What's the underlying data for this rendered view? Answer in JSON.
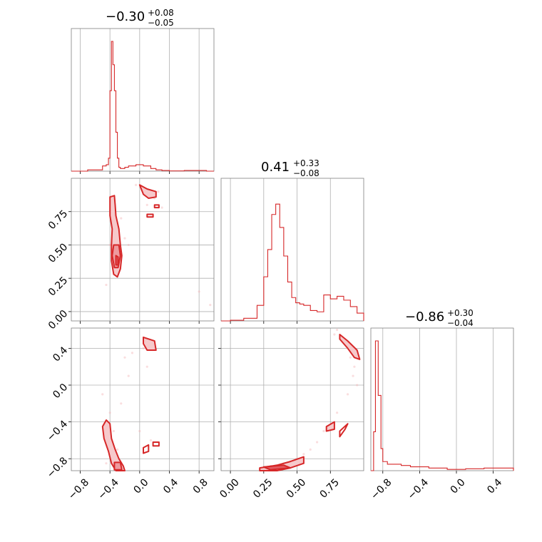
{
  "chart_data": {
    "type": "corner",
    "parameters": [
      {
        "title_main": "−0.30",
        "title_plus": "+0.08",
        "title_minus": "−0.05",
        "range": [
          -0.92,
          1.0
        ]
      },
      {
        "title_main": "0.41",
        "title_plus": "+0.33",
        "title_minus": "−0.08",
        "range": [
          -0.07,
          1.0
        ]
      },
      {
        "title_main": "−0.86",
        "title_plus": "+0.30",
        "title_minus": "−0.04",
        "range": [
          -0.93,
          0.62
        ]
      }
    ],
    "tick_labels": {
      "p0": {
        "values": [
          -0.8,
          -0.4,
          0.0,
          0.4,
          0.8
        ],
        "labels": [
          "−0.8",
          "−0.4",
          "0.0",
          "0.4",
          "0.8"
        ]
      },
      "p1": {
        "values": [
          0.0,
          0.25,
          0.5,
          0.75
        ],
        "labels": [
          "0.00",
          "0.25",
          "0.50",
          "0.75"
        ]
      },
      "p2": {
        "values": [
          -0.8,
          -0.4,
          0.0,
          0.4
        ],
        "labels": [
          "−0.8",
          "−0.4",
          "0.0",
          "0.4"
        ]
      }
    },
    "histograms": [
      {
        "param": 0,
        "bins": [
          -0.92,
          -0.7,
          -0.5,
          -0.45,
          -0.42,
          -0.4,
          -0.38,
          -0.36,
          -0.34,
          -0.32,
          -0.3,
          -0.28,
          -0.26,
          -0.24,
          -0.22,
          -0.2,
          -0.15,
          -0.05,
          0.05,
          0.15,
          0.22,
          0.3,
          0.4,
          0.6,
          0.9,
          1.0
        ],
        "counts": [
          0,
          0.01,
          0.04,
          0.05,
          0.1,
          0.62,
          1.0,
          0.82,
          0.62,
          0.3,
          0.1,
          0.03,
          0.02,
          0.02,
          0.02,
          0.03,
          0.04,
          0.05,
          0.04,
          0.02,
          0.01,
          0.005,
          0.002,
          0.005,
          0.0
        ]
      },
      {
        "param": 1,
        "bins": [
          -0.07,
          0.0,
          0.1,
          0.2,
          0.25,
          0.28,
          0.31,
          0.34,
          0.37,
          0.4,
          0.43,
          0.46,
          0.49,
          0.52,
          0.55,
          0.6,
          0.65,
          0.7,
          0.75,
          0.8,
          0.85,
          0.9,
          0.95,
          1.0
        ],
        "counts": [
          0.0,
          0.005,
          0.02,
          0.12,
          0.34,
          0.55,
          0.82,
          0.9,
          0.72,
          0.5,
          0.3,
          0.18,
          0.14,
          0.13,
          0.12,
          0.08,
          0.07,
          0.2,
          0.17,
          0.19,
          0.16,
          0.11,
          0.06
        ]
      },
      {
        "param": 2,
        "bins": [
          -0.93,
          -0.9,
          -0.88,
          -0.85,
          -0.82,
          -0.8,
          -0.75,
          -0.7,
          -0.6,
          -0.5,
          -0.3,
          -0.1,
          0.1,
          0.3,
          0.45,
          0.62
        ],
        "counts": [
          0.0,
          0.3,
          1.0,
          0.58,
          0.17,
          0.07,
          0.05,
          0.05,
          0.04,
          0.03,
          0.02,
          0.01,
          0.015,
          0.02,
          0.02
        ]
      }
    ],
    "scatter_regions": [
      {
        "panel": "1-0",
        "points": [
          [
            -0.34,
            0.3
          ],
          [
            -0.32,
            0.45
          ],
          [
            -0.3,
            0.6
          ],
          [
            -0.35,
            0.85
          ],
          [
            -0.25,
            0.7
          ],
          [
            -0.4,
            0.5
          ],
          [
            0.05,
            0.93
          ],
          [
            0.15,
            0.88
          ],
          [
            0.2,
            0.85
          ],
          [
            0.1,
            0.8
          ],
          [
            -0.2,
            0.55
          ],
          [
            -0.15,
            0.5
          ],
          [
            0.3,
            0.78
          ],
          [
            -0.45,
            0.2
          ],
          [
            0.95,
            0.05
          ],
          [
            0.8,
            0.15
          ],
          [
            -0.05,
            0.95
          ],
          [
            0.25,
            0.9
          ],
          [
            -0.3,
            0.35
          ]
        ]
      },
      {
        "panel": "2-0",
        "points": [
          [
            -0.35,
            -0.5
          ],
          [
            -0.3,
            -0.7
          ],
          [
            -0.4,
            -0.3
          ],
          [
            -0.25,
            -0.2
          ],
          [
            -0.2,
            0.3
          ],
          [
            -0.15,
            0.1
          ],
          [
            -0.1,
            0.35
          ],
          [
            0.05,
            0.4
          ],
          [
            0.1,
            0.2
          ],
          [
            0.0,
            -0.5
          ],
          [
            0.15,
            -0.6
          ],
          [
            -0.45,
            -0.85
          ],
          [
            -0.5,
            -0.1
          ],
          [
            -0.3,
            -0.9
          ],
          [
            0.2,
            0.45
          ]
        ]
      },
      {
        "panel": "2-1",
        "points": [
          [
            0.3,
            -0.88
          ],
          [
            0.4,
            -0.85
          ],
          [
            0.5,
            -0.8
          ],
          [
            0.6,
            -0.7
          ],
          [
            0.7,
            -0.5
          ],
          [
            0.8,
            -0.3
          ],
          [
            0.88,
            -0.1
          ],
          [
            0.92,
            0.1
          ],
          [
            0.9,
            0.3
          ],
          [
            0.85,
            0.5
          ],
          [
            0.8,
            0.6
          ],
          [
            0.55,
            -0.75
          ],
          [
            0.65,
            -0.62
          ],
          [
            0.75,
            -0.45
          ],
          [
            0.45,
            -0.83
          ],
          [
            0.95,
            0.0
          ],
          [
            0.93,
            0.2
          ],
          [
            0.78,
            0.55
          ]
        ]
      }
    ]
  }
}
